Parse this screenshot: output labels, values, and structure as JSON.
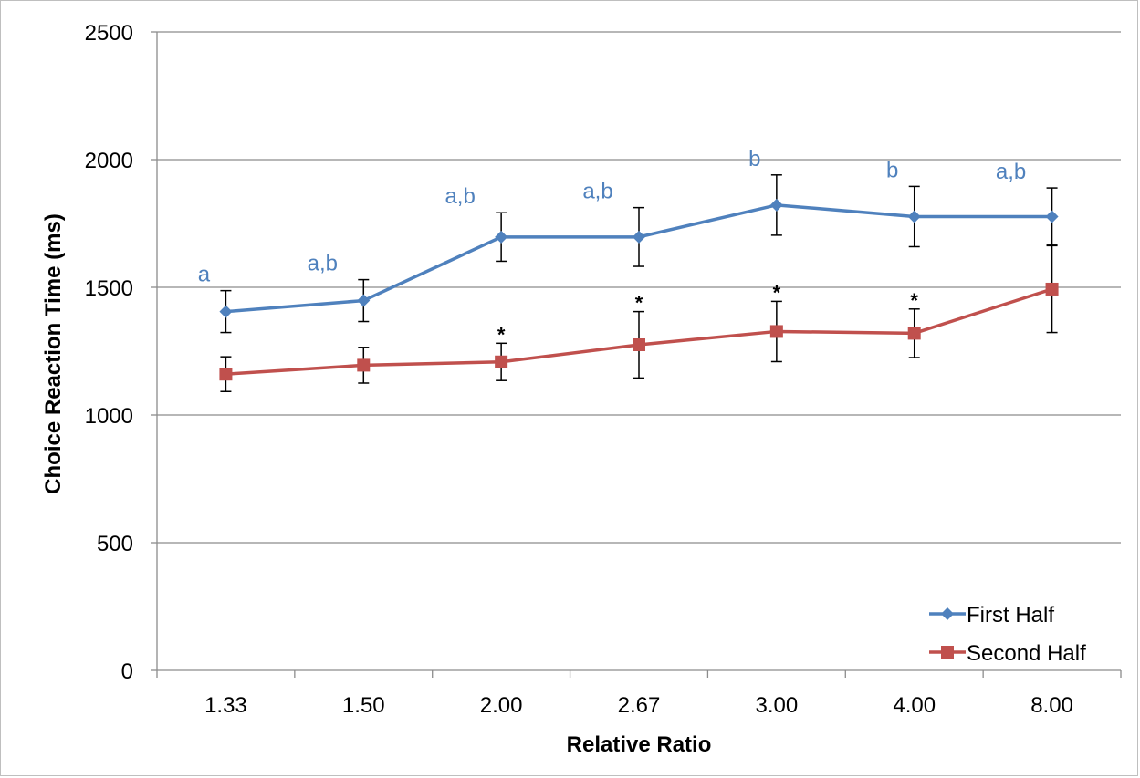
{
  "chart_data": {
    "type": "line",
    "categories": [
      "1.33",
      "1.50",
      "2.00",
      "2.67",
      "3.00",
      "4.00",
      "8.00"
    ],
    "series": [
      {
        "name": "First Half",
        "color": "#4f81bd",
        "marker": "diamond",
        "values": [
          1405,
          1448,
          1697,
          1697,
          1822,
          1777,
          1777
        ],
        "error": [
          82,
          82,
          95,
          115,
          118,
          118,
          112
        ]
      },
      {
        "name": "Second Half",
        "color": "#c0504d",
        "marker": "square",
        "values": [
          1160,
          1195,
          1208,
          1275,
          1327,
          1320,
          1493
        ],
        "error": [
          68,
          70,
          73,
          130,
          118,
          95,
          170
        ]
      }
    ],
    "annotations": [
      {
        "category": "1.33",
        "text": "a"
      },
      {
        "category": "1.50",
        "text": "a,b"
      },
      {
        "category": "2.00",
        "text": "a,b"
      },
      {
        "category": "2.67",
        "text": "a,b"
      },
      {
        "category": "3.00",
        "text": "b"
      },
      {
        "category": "4.00",
        "text": "b"
      },
      {
        "category": "8.00",
        "text": "a,b"
      }
    ],
    "significance": [
      {
        "category": "2.00",
        "text": "*"
      },
      {
        "category": "2.67",
        "text": "*"
      },
      {
        "category": "3.00",
        "text": "*"
      },
      {
        "category": "4.00",
        "text": "*"
      }
    ],
    "xlabel": "Relative Ratio",
    "ylabel": "Choice Reaction Time (ms)",
    "ylim": [
      0,
      2500
    ],
    "yticks": [
      0,
      500,
      1000,
      1500,
      2000,
      2500
    ],
    "grid": true,
    "legend_position": "bottom-right"
  }
}
